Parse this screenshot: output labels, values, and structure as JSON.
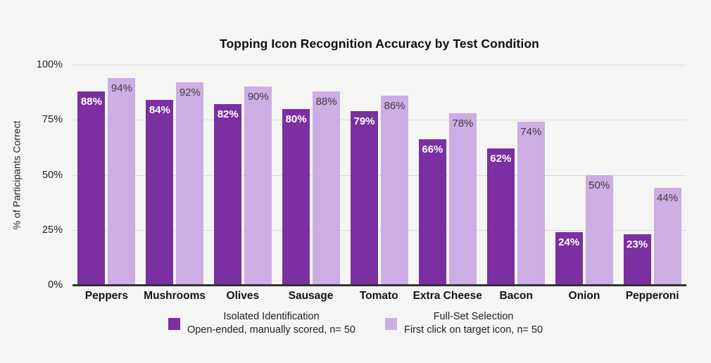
{
  "chart": {
    "title": "Topping Icon Recognition Accuracy by Test Condition",
    "ylabel": "% of Participants Correct"
  },
  "chart_data": {
    "type": "bar",
    "title": "Topping Icon Recognition Accuracy by Test Condition",
    "xlabel": "",
    "ylabel": "% of Participants Correct",
    "ylim": [
      0,
      100
    ],
    "yticks": [
      0,
      25,
      50,
      75,
      100
    ],
    "ytick_labels": [
      "0%",
      "25%",
      "50%",
      "75%",
      "100%"
    ],
    "grid": true,
    "legend_position": "bottom",
    "value_suffix": "%",
    "categories": [
      "Peppers",
      "Mushrooms",
      "Olives",
      "Sausage",
      "Tomato",
      "Extra Cheese",
      "Bacon",
      "Onion",
      "Pepperoni"
    ],
    "series": [
      {
        "name": "Isolated Identification",
        "sublabel": "Open-ended, manually scored, n= 50",
        "color": "#7b2fa0",
        "label_color": "#ffffff",
        "label_weight": "700",
        "values": [
          88,
          84,
          82,
          80,
          79,
          66,
          62,
          24,
          23
        ]
      },
      {
        "name": "Full-Set Selection",
        "sublabel": "First click on target icon, n= 50",
        "color": "#cbaee3",
        "label_color": "#3d3d3d",
        "label_weight": "400",
        "values": [
          94,
          92,
          90,
          88,
          86,
          78,
          74,
          50,
          44
        ]
      }
    ],
    "colors": {
      "background": "#f5f5f3",
      "gridline": "#d9d9d8",
      "axis_line": "#333333",
      "title_text": "#0e0e0e",
      "tick_text": "#1f1f1f"
    }
  }
}
